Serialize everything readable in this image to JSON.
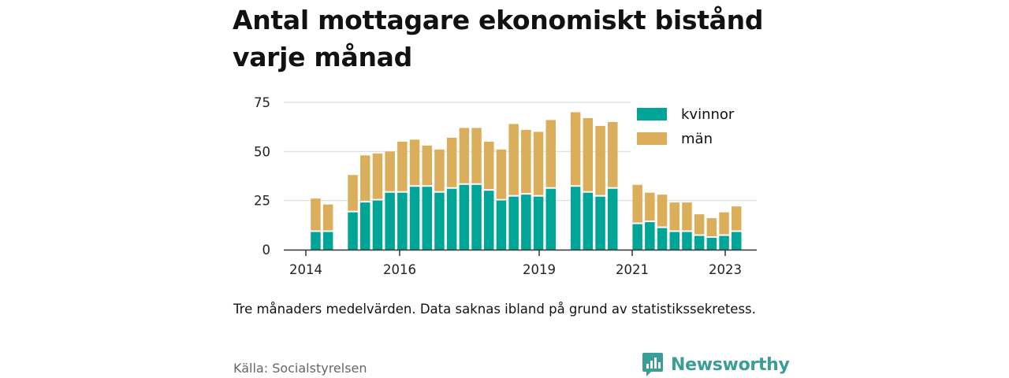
{
  "title": "Antal mottagare ekonomiskt bistånd varje månad",
  "note": "Tre månaders medelvärden. Data saknas ibland på grund av statistikssekretess.",
  "source": "Källa: Socialstyrelsen",
  "brand": {
    "name": "Newsworthy",
    "icon": "newsworthy-logo-icon",
    "color": "#3a9e96"
  },
  "colors": {
    "kvinnor": "#00a598",
    "man": "#dbae5b",
    "grid": "#dddddd",
    "axis": "#333333"
  },
  "chart_data": {
    "type": "bar",
    "stacked": true,
    "title": "Antal mottagare ekonomiskt bistånd varje månad",
    "ylim": [
      0,
      75
    ],
    "yticks": [
      0,
      25,
      50,
      75
    ],
    "xticks": [
      "2014",
      "2016",
      "2019",
      "2021",
      "2023"
    ],
    "grid": true,
    "legend_position": "top-right",
    "series": [
      {
        "name": "kvinnor",
        "values": [
          null,
          9,
          9,
          null,
          19,
          24,
          25,
          29,
          29,
          32,
          32,
          29,
          31,
          33,
          33,
          30,
          25,
          27,
          28,
          27,
          31,
          null,
          32,
          29,
          27,
          31,
          null,
          13,
          14,
          11,
          9,
          9,
          7,
          6,
          7,
          9
        ]
      },
      {
        "name": "män",
        "values": [
          null,
          17,
          14,
          null,
          19,
          24,
          24,
          21,
          26,
          24,
          21,
          22,
          26,
          29,
          29,
          25,
          26,
          37,
          33,
          33,
          35,
          null,
          38,
          38,
          36,
          34,
          null,
          20,
          15,
          17,
          15,
          15,
          11,
          10,
          12,
          13
        ]
      }
    ]
  }
}
